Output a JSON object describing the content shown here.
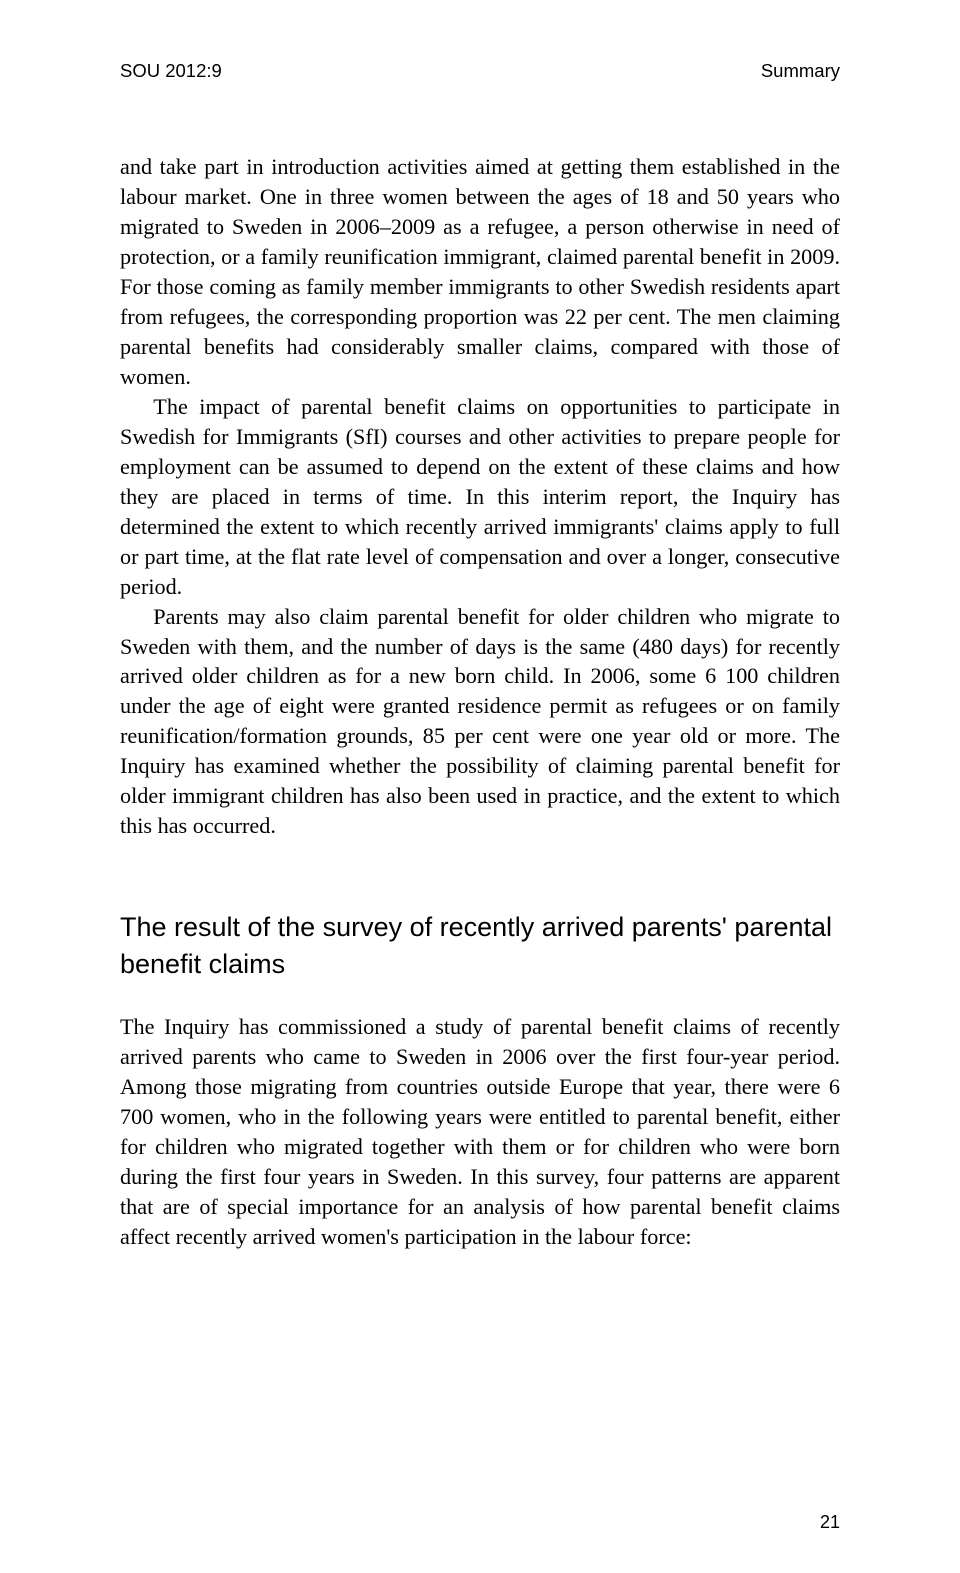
{
  "header": {
    "left": "SOU 2012:9",
    "right": "Summary"
  },
  "paragraphs": {
    "p1": "and take part in introduction activities aimed at getting them established in the labour market. One in three women between the ages of 18 and 50 years who migrated to Sweden in 2006–2009 as a refugee, a person otherwise in need of protection, or a family reunification immigrant, claimed parental benefit in 2009. For those coming as family member immigrants to other Swedish residents apart from refugees, the corresponding proportion was 22 per cent. The men claiming parental benefits had considerably smaller claims, compared with those of women.",
    "p2": "The impact of parental benefit claims on opportunities to participate in Swedish for Immigrants (SfI) courses and other activities to prepare people for employment can be assumed to depend on the extent of these claims and how they are placed in terms of time. In this interim report, the Inquiry has determined the extent to which recently arrived immigrants' claims apply to full or part time, at the flat rate level of compensation and over a longer, consecutive period.",
    "p3": "Parents may also claim parental benefit for older children who migrate to Sweden with them, and the number of days is the same (480 days) for recently arrived older children as for a new born child. In 2006, some 6 100 children under the age of eight were granted residence permit as refugees or on family reunification/formation grounds, 85 per cent were one year old or more. The Inquiry has examined whether the possibility of claiming parental benefit for older immigrant children has also been used in practice, and the extent to which this has occurred."
  },
  "section_heading": "The result of the survey of recently arrived parents' parental benefit claims",
  "paragraphs2": {
    "p4": "The Inquiry has commissioned a study of parental benefit claims of recently arrived parents who came to Sweden in 2006 over the first four-year period. Among those migrating from countries outside Europe that year, there were 6 700 women, who in the following years were entitled to parental benefit, either for children who migrated together with them or for children who were born during the first four years in Sweden. In this survey, four patterns are apparent that are of special importance for an analysis of how parental benefit claims affect recently arrived women's participation in the labour force:"
  },
  "page_number": "21"
}
